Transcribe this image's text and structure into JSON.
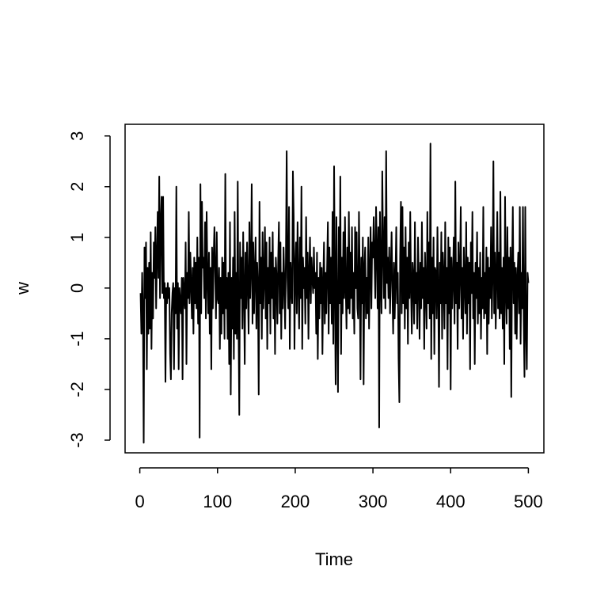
{
  "chart_data": {
    "type": "line",
    "xlabel": "Time",
    "ylabel": "w",
    "color": "#000000",
    "xlim": [
      -18.96,
      519.96
    ],
    "ylim": [
      -3.25,
      3.23
    ],
    "xticks": [
      0,
      100,
      200,
      300,
      400,
      500
    ],
    "yticks": [
      -3,
      -2,
      -1,
      0,
      1,
      2,
      3
    ],
    "x": [
      1,
      2,
      3,
      4,
      5,
      6,
      7,
      8,
      9,
      10,
      11,
      12,
      13,
      14,
      15,
      16,
      17,
      18,
      19,
      20,
      21,
      22,
      23,
      24,
      25,
      26,
      27,
      28,
      29,
      30,
      31,
      32,
      33,
      34,
      35,
      36,
      37,
      38,
      39,
      40,
      41,
      42,
      43,
      44,
      45,
      46,
      47,
      48,
      49,
      50,
      51,
      52,
      53,
      54,
      55,
      56,
      57,
      58,
      59,
      60,
      61,
      62,
      63,
      64,
      65,
      66,
      67,
      68,
      69,
      70,
      71,
      72,
      73,
      74,
      75,
      76,
      77,
      78,
      79,
      80,
      81,
      82,
      83,
      84,
      85,
      86,
      87,
      88,
      89,
      90,
      91,
      92,
      93,
      94,
      95,
      96,
      97,
      98,
      99,
      100,
      101,
      102,
      103,
      104,
      105,
      106,
      107,
      108,
      109,
      110,
      111,
      112,
      113,
      114,
      115,
      116,
      117,
      118,
      119,
      120,
      121,
      122,
      123,
      124,
      125,
      126,
      127,
      128,
      129,
      130,
      131,
      132,
      133,
      134,
      135,
      136,
      137,
      138,
      139,
      140,
      141,
      142,
      143,
      144,
      145,
      146,
      147,
      148,
      149,
      150,
      151,
      152,
      153,
      154,
      155,
      156,
      157,
      158,
      159,
      160,
      161,
      162,
      163,
      164,
      165,
      166,
      167,
      168,
      169,
      170,
      171,
      172,
      173,
      174,
      175,
      176,
      177,
      178,
      179,
      180,
      181,
      182,
      183,
      184,
      185,
      186,
      187,
      188,
      189,
      190,
      191,
      192,
      193,
      194,
      195,
      196,
      197,
      198,
      199,
      200,
      201,
      202,
      203,
      204,
      205,
      206,
      207,
      208,
      209,
      210,
      211,
      212,
      213,
      214,
      215,
      216,
      217,
      218,
      219,
      220,
      221,
      222,
      223,
      224,
      225,
      226,
      227,
      228,
      229,
      230,
      231,
      232,
      233,
      234,
      235,
      236,
      237,
      238,
      239,
      240,
      241,
      242,
      243,
      244,
      245,
      246,
      247,
      248,
      249,
      250,
      251,
      252,
      253,
      254,
      255,
      256,
      257,
      258,
      259,
      260,
      261,
      262,
      263,
      264,
      265,
      266,
      267,
      268,
      269,
      270,
      271,
      272,
      273,
      274,
      275,
      276,
      277,
      278,
      279,
      280,
      281,
      282,
      283,
      284,
      285,
      286,
      287,
      288,
      289,
      290,
      291,
      292,
      293,
      294,
      295,
      296,
      297,
      298,
      299,
      300,
      301,
      302,
      303,
      304,
      305,
      306,
      307,
      308,
      309,
      310,
      311,
      312,
      313,
      314,
      315,
      316,
      317,
      318,
      319,
      320,
      321,
      322,
      323,
      324,
      325,
      326,
      327,
      328,
      329,
      330,
      331,
      332,
      333,
      334,
      335,
      336,
      337,
      338,
      339,
      340,
      341,
      342,
      343,
      344,
      345,
      346,
      347,
      348,
      349,
      350,
      351,
      352,
      353,
      354,
      355,
      356,
      357,
      358,
      359,
      360,
      361,
      362,
      363,
      364,
      365,
      366,
      367,
      368,
      369,
      370,
      371,
      372,
      373,
      374,
      375,
      376,
      377,
      378,
      379,
      380,
      381,
      382,
      383,
      384,
      385,
      386,
      387,
      388,
      389,
      390,
      391,
      392,
      393,
      394,
      395,
      396,
      397,
      398,
      399,
      400,
      401,
      402,
      403,
      404,
      405,
      406,
      407,
      408,
      409,
      410,
      411,
      412,
      413,
      414,
      415,
      416,
      417,
      418,
      419,
      420,
      421,
      422,
      423,
      424,
      425,
      426,
      427,
      428,
      429,
      430,
      431,
      432,
      433,
      434,
      435,
      436,
      437,
      438,
      439,
      440,
      441,
      442,
      443,
      444,
      445,
      446,
      447,
      448,
      449,
      450,
      451,
      452,
      453,
      454,
      455,
      456,
      457,
      458,
      459,
      460,
      461,
      462,
      463,
      464,
      465,
      466,
      467,
      468,
      469,
      470,
      471,
      472,
      473,
      474,
      475,
      476,
      477,
      478,
      479,
      480,
      481,
      482,
      483,
      484,
      485,
      486,
      487,
      488,
      489,
      490,
      491,
      492,
      493,
      494,
      495,
      496,
      497,
      498,
      499,
      500
    ],
    "values": [
      -0.1,
      -0.9,
      0.3,
      -0.5,
      -3.05,
      0.8,
      -0.2,
      0.9,
      -1.6,
      0.4,
      -0.9,
      0.5,
      -0.8,
      1.1,
      -1.2,
      0.3,
      -0.6,
      0.9,
      0.2,
      1.2,
      -0.4,
      0.6,
      1.5,
      0.2,
      2.2,
      -0.2,
      1.3,
      1.8,
      -0.1,
      1.8,
      -0.2,
      0.1,
      -1.85,
      0.0,
      -0.3,
      0.1,
      -0.2,
      0.0,
      -1.3,
      -1.8,
      -0.5,
      -0.1,
      0.1,
      -1.6,
      0.0,
      -0.5,
      2.0,
      -0.8,
      0.1,
      -1.6,
      0.0,
      -0.3,
      -0.5,
      0.2,
      -1.8,
      0.2,
      -0.1,
      -0.4,
      0.9,
      -1.5,
      0.3,
      -0.2,
      1.5,
      -0.3,
      0.7,
      0.1,
      -0.6,
      0.4,
      -0.9,
      0.6,
      -0.3,
      0.5,
      -0.4,
      1.0,
      -0.7,
      0.6,
      -2.95,
      2.05,
      -0.5,
      1.7,
      0.4,
      0.6,
      -0.2,
      1.3,
      -0.6,
      1.5,
      0.2,
      -0.5,
      0.7,
      -0.9,
      0.4,
      -1.6,
      0.8,
      -0.4,
      0.6,
      1.2,
      0.3,
      -0.6,
      1.1,
      -0.2,
      -0.3,
      0.4,
      -1.2,
      0.2,
      -0.9,
      0.6,
      -0.5,
      0.5,
      -1.0,
      2.25,
      -0.4,
      0.2,
      -1.0,
      0.3,
      -1.5,
      1.3,
      -2.1,
      0.2,
      -0.8,
      0.6,
      -1.4,
      1.5,
      -0.9,
      0.3,
      -1.0,
      2.1,
      -0.6,
      -2.5,
      0.9,
      -0.2,
      0.6,
      -0.8,
      1.1,
      0.0,
      -1.5,
      0.7,
      -0.4,
      0.9,
      0.1,
      -0.9,
      1.3,
      -0.2,
      0.4,
      2.05,
      -0.7,
      0.9,
      -0.5,
      0.3,
      1.0,
      -0.8,
      0.5,
      0.0,
      -2.1,
      1.7,
      -0.3,
      0.6,
      -1.0,
      1.1,
      -0.4,
      0.2,
      1.2,
      -0.6,
      0.9,
      -1.2,
      0.4,
      -0.3,
      1.0,
      -0.9,
      0.7,
      -0.2,
      1.1,
      -0.6,
      0.4,
      -1.3,
      0.6,
      0.2,
      -0.7,
      0.5,
      1.3,
      -0.5,
      0.9,
      -1.0,
      0.3,
      -0.4,
      0.8,
      0.1,
      -0.8,
      0.6,
      2.7,
      0.2,
      -0.4,
      1.6,
      -1.2,
      0.5,
      0.0,
      -0.3,
      2.3,
      1.4,
      -1.2,
      0.4,
      0.9,
      -0.5,
      1.3,
      0.1,
      -0.8,
      1.0,
      -0.2,
      2.0,
      -1.2,
      0.6,
      0.0,
      0.4,
      -0.7,
      1.4,
      -0.2,
      0.7,
      -1.0,
      0.3,
      1.0,
      -0.3,
      0.6,
      0.2,
      -0.1,
      0.8,
      0.0,
      0.3,
      -0.9,
      0.7,
      -1.4,
      0.2,
      -0.6,
      0.5,
      -0.3,
      0.4,
      -1.3,
      0.1,
      0.9,
      -0.7,
      0.3,
      -0.5,
      0.4,
      1.3,
      -0.9,
      0.8,
      -0.3,
      0.6,
      -0.7,
      1.5,
      -1.1,
      2.4,
      0.1,
      -1.9,
      1.4,
      -0.6,
      -2.05,
      1.2,
      -0.3,
      2.2,
      -1.3,
      0.6,
      -0.5,
      1.1,
      -0.2,
      1.4,
      0.0,
      -0.8,
      0.8,
      -0.4,
      1.5,
      -0.5,
      0.7,
      -0.2,
      1.2,
      -0.6,
      0.3,
      -0.9,
      1.2,
      0.0,
      1.1,
      -0.4,
      -0.6,
      1.5,
      0.2,
      -1.8,
      0.6,
      -0.3,
      1.0,
      -1.9,
      0.4,
      0.8,
      -0.6,
      0.2,
      -0.5,
      1.0,
      -0.8,
      0.3,
      1.2,
      -0.4,
      0.9,
      0.6,
      1.4,
      0.6,
      -0.2,
      1.6,
      0.8,
      -0.4,
      1.2,
      -2.75,
      1.5,
      0.3,
      -0.5,
      2.3,
      0.8,
      -0.2,
      1.4,
      -0.4,
      2.7,
      0.1,
      0.6,
      -0.2,
      0.8,
      -0.5,
      0.3,
      1.1,
      0.0,
      -0.9,
      0.5,
      -0.6,
      0.2,
      1.2,
      -0.3,
      0.3,
      -1.4,
      -2.25,
      0.6,
      1.7,
      -0.5,
      1.6,
      -0.3,
      0.8,
      -0.8,
      1.2,
      -0.4,
      0.6,
      -1.1,
      0.9,
      -0.2,
      1.5,
      0.0,
      -0.9,
      0.5,
      0.2,
      -0.7,
      1.3,
      -0.3,
      0.3,
      -0.8,
      1.0,
      0.2,
      -1.0,
      0.5,
      -0.4,
      1.3,
      -0.2,
      0.4,
      -1.2,
      0.7,
      0.0,
      -0.8,
      1.5,
      -0.3,
      0.9,
      -0.6,
      2.85,
      -1.4,
      0.6,
      -0.5,
      1.0,
      -1.3,
      0.4,
      0.3,
      -0.6,
      1.2,
      0.0,
      -1.95,
      0.5,
      -0.3,
      1.1,
      -1.0,
      0.7,
      0.2,
      -0.8,
      1.3,
      -0.3,
      0.4,
      -1.6,
      1.0,
      -0.5,
      0.8,
      -2.0,
      0.6,
      -0.4,
      0.2,
      1.0,
      -0.7,
      2.1,
      -0.3,
      0.5,
      -1.2,
      0.9,
      -0.4,
      0.3,
      1.6,
      -0.6,
      0.4,
      -1.0,
      0.8,
      0.1,
      -0.5,
      1.3,
      -0.9,
      0.6,
      -0.3,
      0.5,
      -1.6,
      0.9,
      -0.1,
      1.5,
      -0.6,
      0.3,
      -1.5,
      0.5,
      -0.2,
      1.1,
      -0.7,
      0.4,
      -0.5,
      0.7,
      -1.0,
      0.2,
      -0.4,
      1.6,
      -0.6,
      0.3,
      -0.5,
      0.8,
      -1.3,
      0.6,
      -0.7,
      0.4,
      -0.2,
      1.2,
      -0.6,
      0.3,
      2.5,
      -0.5,
      0.7,
      -0.8,
      0.2,
      1.5,
      -0.4,
      0.7,
      -0.6,
      1.9,
      -0.5,
      0.4,
      -0.8,
      0.6,
      -1.5,
      1.8,
      0.0,
      -0.7,
      1.2,
      -0.4,
      0.6,
      -1.2,
      0.8,
      -2.15,
      0.4,
      1.6,
      -0.3,
      0.5,
      -0.9,
      0.4,
      -1.0,
      0.2,
      0.7,
      -0.5,
      1.6,
      -1.1,
      0.3,
      -0.4,
      1.6,
      -0.6,
      -1.75,
      1.6,
      -0.8,
      -1.6,
      0.3,
      0.1
    ]
  }
}
